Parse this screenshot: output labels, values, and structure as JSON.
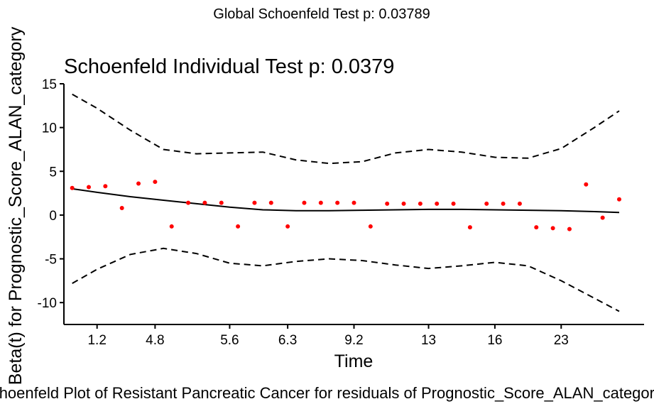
{
  "global_title": "Global Schoenfeld Test p: 0.03789",
  "caption": "Schoenfeld Plot of Resistant Pancreatic Cancer for residuals of Prognostic_Score_ALAN_category",
  "chart_data": {
    "type": "scatter",
    "title": "Schoenfeld Individual Test p: 0.0379",
    "xlabel": "Time",
    "ylabel": "Beta(t) for Prognostic_Score_ALAN_category",
    "x_tick_labels": [
      "1.2",
      "4.8",
      "5.6",
      "6.3",
      "9.2",
      "13",
      "16",
      "23"
    ],
    "x_tick_positions": [
      2,
      5.5,
      10,
      13.5,
      17.5,
      22,
      26,
      30
    ],
    "xlim": [
      0,
      35
    ],
    "ylim": [
      -12.5,
      15
    ],
    "y_ticks": [
      -10,
      -5,
      0,
      5,
      10,
      15
    ],
    "grid": false,
    "residual_color": "#ff0000",
    "points": [
      {
        "x": 0.5,
        "y": 3.1
      },
      {
        "x": 1.5,
        "y": 3.2
      },
      {
        "x": 2.5,
        "y": 3.3
      },
      {
        "x": 3.5,
        "y": 0.8
      },
      {
        "x": 4.5,
        "y": 3.6
      },
      {
        "x": 5.5,
        "y": 3.8
      },
      {
        "x": 6.5,
        "y": -1.3
      },
      {
        "x": 7.5,
        "y": 1.4
      },
      {
        "x": 8.5,
        "y": 1.4
      },
      {
        "x": 9.5,
        "y": 1.4
      },
      {
        "x": 10.5,
        "y": -1.3
      },
      {
        "x": 11.5,
        "y": 1.4
      },
      {
        "x": 12.5,
        "y": 1.4
      },
      {
        "x": 13.5,
        "y": -1.3
      },
      {
        "x": 14.5,
        "y": 1.4
      },
      {
        "x": 15.5,
        "y": 1.4
      },
      {
        "x": 16.5,
        "y": 1.4
      },
      {
        "x": 17.5,
        "y": 1.4
      },
      {
        "x": 18.5,
        "y": -1.3
      },
      {
        "x": 19.5,
        "y": 1.3
      },
      {
        "x": 20.5,
        "y": 1.3
      },
      {
        "x": 21.5,
        "y": 1.3
      },
      {
        "x": 22.5,
        "y": 1.3
      },
      {
        "x": 23.5,
        "y": 1.3
      },
      {
        "x": 24.5,
        "y": -1.4
      },
      {
        "x": 25.5,
        "y": 1.3
      },
      {
        "x": 26.5,
        "y": 1.3
      },
      {
        "x": 27.5,
        "y": 1.3
      },
      {
        "x": 28.5,
        "y": -1.4
      },
      {
        "x": 29.5,
        "y": -1.5
      },
      {
        "x": 30.5,
        "y": -1.6
      },
      {
        "x": 31.5,
        "y": 3.5
      },
      {
        "x": 32.5,
        "y": -0.3
      },
      {
        "x": 33.5,
        "y": 1.8
      }
    ],
    "fit": [
      {
        "x": 0.5,
        "y": 3.0
      },
      {
        "x": 2,
        "y": 2.6
      },
      {
        "x": 4,
        "y": 2.1
      },
      {
        "x": 6,
        "y": 1.7
      },
      {
        "x": 8,
        "y": 1.3
      },
      {
        "x": 10,
        "y": 0.9
      },
      {
        "x": 12,
        "y": 0.6
      },
      {
        "x": 14,
        "y": 0.5
      },
      {
        "x": 16,
        "y": 0.5
      },
      {
        "x": 18,
        "y": 0.55
      },
      {
        "x": 20,
        "y": 0.6
      },
      {
        "x": 22,
        "y": 0.65
      },
      {
        "x": 24,
        "y": 0.65
      },
      {
        "x": 26,
        "y": 0.6
      },
      {
        "x": 28,
        "y": 0.55
      },
      {
        "x": 30,
        "y": 0.5
      },
      {
        "x": 32,
        "y": 0.4
      },
      {
        "x": 33.5,
        "y": 0.3
      }
    ],
    "upper_band": [
      {
        "x": 0.5,
        "y": 13.8
      },
      {
        "x": 2,
        "y": 12.2
      },
      {
        "x": 4,
        "y": 9.7
      },
      {
        "x": 6,
        "y": 7.5
      },
      {
        "x": 8,
        "y": 7.0
      },
      {
        "x": 10,
        "y": 7.1
      },
      {
        "x": 12,
        "y": 7.2
      },
      {
        "x": 14,
        "y": 6.3
      },
      {
        "x": 16,
        "y": 5.9
      },
      {
        "x": 18,
        "y": 6.1
      },
      {
        "x": 20,
        "y": 7.1
      },
      {
        "x": 22,
        "y": 7.5
      },
      {
        "x": 24,
        "y": 7.2
      },
      {
        "x": 26,
        "y": 6.6
      },
      {
        "x": 28,
        "y": 6.5
      },
      {
        "x": 30,
        "y": 7.6
      },
      {
        "x": 32,
        "y": 10.0
      },
      {
        "x": 33.5,
        "y": 11.9
      }
    ],
    "lower_band": [
      {
        "x": 0.5,
        "y": -7.8
      },
      {
        "x": 2,
        "y": -6.2
      },
      {
        "x": 4,
        "y": -4.5
      },
      {
        "x": 6,
        "y": -3.8
      },
      {
        "x": 8,
        "y": -4.4
      },
      {
        "x": 10,
        "y": -5.5
      },
      {
        "x": 12,
        "y": -5.8
      },
      {
        "x": 14,
        "y": -5.3
      },
      {
        "x": 16,
        "y": -5.0
      },
      {
        "x": 18,
        "y": -5.2
      },
      {
        "x": 20,
        "y": -5.7
      },
      {
        "x": 22,
        "y": -6.1
      },
      {
        "x": 24,
        "y": -5.8
      },
      {
        "x": 26,
        "y": -5.4
      },
      {
        "x": 28,
        "y": -5.8
      },
      {
        "x": 30,
        "y": -7.5
      },
      {
        "x": 32,
        "y": -9.5
      },
      {
        "x": 33.5,
        "y": -11.0
      }
    ]
  }
}
